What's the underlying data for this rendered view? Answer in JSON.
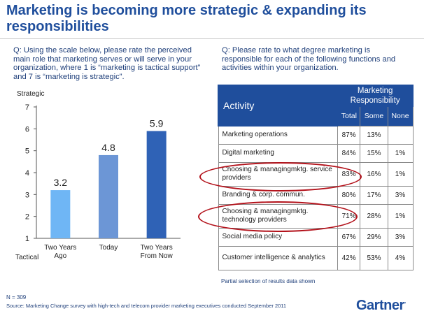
{
  "slide": {
    "title": "Marketing is becoming more strategic & expanding its responsibilities",
    "q_left": "Q:  Using the scale below, please rate the perceived main role that marketing serves or will serve in your organization, where 1 is “marketing is tactical support” and 7 is “marketing is strategic”.",
    "q_right": "Q:  Please rate to what degree marketing is responsible for each of the following functions and activities within your organization.",
    "partial_note": "Partial selection of  results data shown",
    "n": "N = 309",
    "source": "Source:   Marketing Change survey with high-tech and telecom provider marketing executives conducted September 2011",
    "logo": "Gartner",
    "logo_mark": "."
  },
  "chart_data": {
    "type": "bar",
    "categories": [
      "Two Years Ago",
      "Today",
      "Two Years From Now"
    ],
    "category_lines": [
      [
        "Two Years",
        "Ago"
      ],
      [
        "Today"
      ],
      [
        "Two Years",
        "From Now"
      ]
    ],
    "values": [
      3.2,
      4.8,
      5.9
    ],
    "value_labels": [
      "3.2",
      "4.8",
      "5.9"
    ],
    "ylim": [
      1,
      7
    ],
    "yticks": [
      "1",
      "2",
      "3",
      "4",
      "5",
      "6",
      "7"
    ],
    "top_note": "Strategic",
    "bottom_note": "Tactical",
    "grid": false,
    "colors": [
      "#6fb6f5",
      "#6c96d6",
      "#2f62b6"
    ]
  },
  "table": {
    "header_activity": "Activity",
    "header_group": "Marketing Responsibility",
    "col_total": "Total",
    "col_some": "Some",
    "col_none": "None",
    "rows": [
      {
        "activity": "Marketing operations",
        "total": "87%",
        "some": "13%",
        "none": ""
      },
      {
        "activity": "Digital marketing",
        "total": "84%",
        "some": "15%",
        "none": "1%"
      },
      {
        "activity": "Choosing & managingmktg. service providers",
        "total": "83%",
        "some": "16%",
        "none": "1%"
      },
      {
        "activity": "Branding & corp. commun.",
        "total": "80%",
        "some": "17%",
        "none": "3%"
      },
      {
        "activity": "Choosing & managingmktg. technology providers",
        "total": "71%",
        "some": "28%",
        "none": "1%"
      },
      {
        "activity": "Social media policy",
        "total": "67%",
        "some": "29%",
        "none": "3%"
      },
      {
        "activity": "Customer intelligence & analytics",
        "total": "42%",
        "some": "53%",
        "none": "4%"
      }
    ],
    "header_color": "#1f4e9c",
    "highlight_color": "#b3121b"
  }
}
